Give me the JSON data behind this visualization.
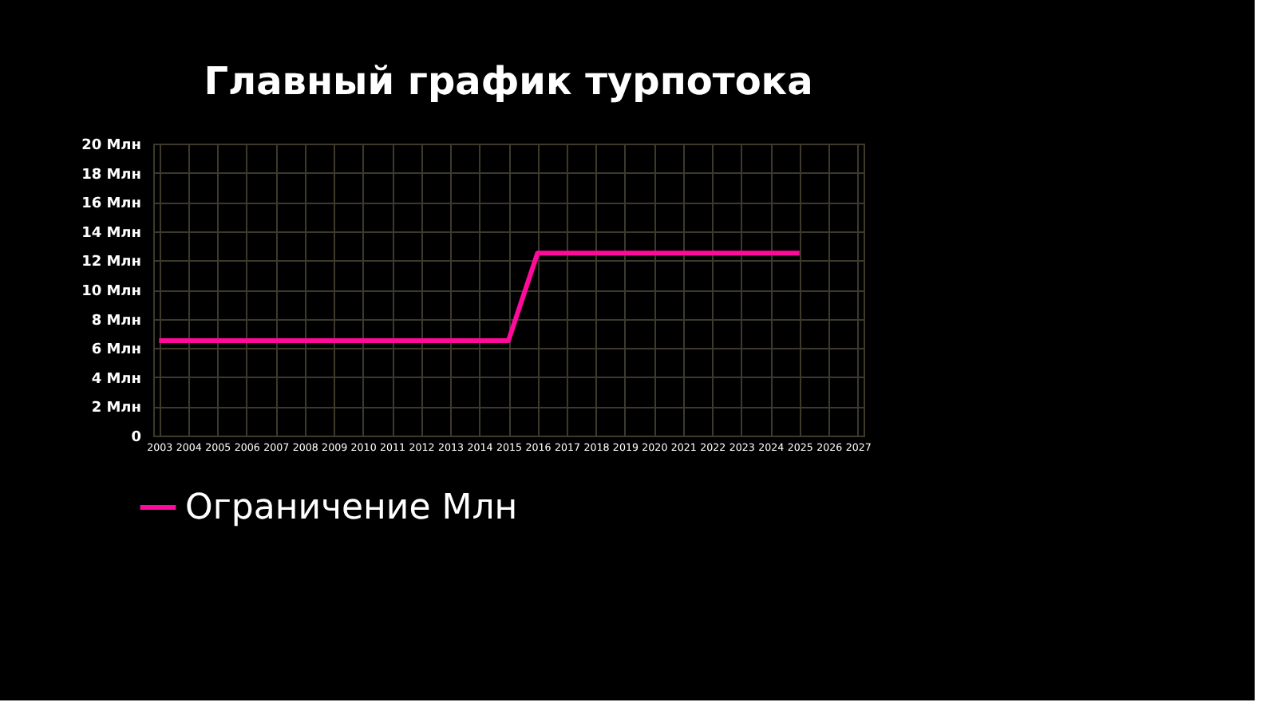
{
  "chart_data": {
    "type": "line",
    "title": "Главный график турпотока",
    "categories": [
      "2003",
      "2004",
      "2005",
      "2006",
      "2007",
      "2008",
      "2009",
      "2010",
      "2011",
      "2012",
      "2013",
      "2014",
      "2015",
      "2016",
      "2017",
      "2018",
      "2019",
      "2020",
      "2021",
      "2022",
      "2023",
      "2024",
      "2025",
      "2026",
      "2027"
    ],
    "series": [
      {
        "name": "Ограничение Млн",
        "color": "#ff0a9c",
        "values": [
          6.5,
          6.5,
          6.5,
          6.5,
          6.5,
          6.5,
          6.5,
          6.5,
          6.5,
          6.5,
          6.5,
          6.5,
          6.5,
          12.5,
          12.5,
          12.5,
          12.5,
          12.5,
          12.5,
          12.5,
          12.5,
          12.5,
          12.5,
          null,
          null
        ]
      }
    ],
    "ylim": [
      0,
      20
    ],
    "yticks": [
      0,
      {
        "value": 2,
        "label": "2 Млн"
      },
      {
        "value": 4,
        "label": "4 Млн"
      },
      {
        "value": 6,
        "label": "6 Млн"
      },
      {
        "value": 8,
        "label": "8 Млн"
      },
      {
        "value": 10,
        "label": "10 Млн"
      },
      {
        "value": 12,
        "label": "12 Млн"
      },
      {
        "value": 14,
        "label": "14 Млн"
      },
      {
        "value": 16,
        "label": "16 Млн"
      },
      {
        "value": 18,
        "label": "18 Млн"
      },
      {
        "value": 20,
        "label": "20 Млн"
      }
    ],
    "grid": true,
    "legend": "bottom left",
    "marker": "none",
    "line_style": "solid"
  }
}
